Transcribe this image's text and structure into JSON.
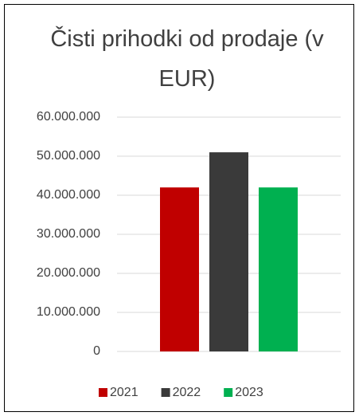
{
  "chart_data": {
    "type": "bar",
    "title": "Čisti prihodki od prodaje (v EUR)",
    "categories": [
      null
    ],
    "series": [
      {
        "name": "2021",
        "color": "#c00000",
        "values": [
          42000000
        ]
      },
      {
        "name": "2022",
        "color": "#3a3a3a",
        "values": [
          51000000
        ]
      },
      {
        "name": "2023",
        "color": "#00b050",
        "values": [
          42000000
        ]
      }
    ],
    "ylim": [
      0,
      60000000
    ],
    "yticks": [
      0,
      {
        "value": 10000000,
        "label": "10.000.000"
      },
      {
        "value": 20000000,
        "label": "20.000.000"
      },
      {
        "value": 30000000,
        "label": "30.000.000"
      },
      {
        "value": 40000000,
        "label": "40.000.000"
      },
      {
        "value": 50000000,
        "label": "50.000.000"
      },
      {
        "value": 60000000,
        "label": "60.000.000"
      }
    ],
    "grid": true,
    "legend": "bottom"
  }
}
